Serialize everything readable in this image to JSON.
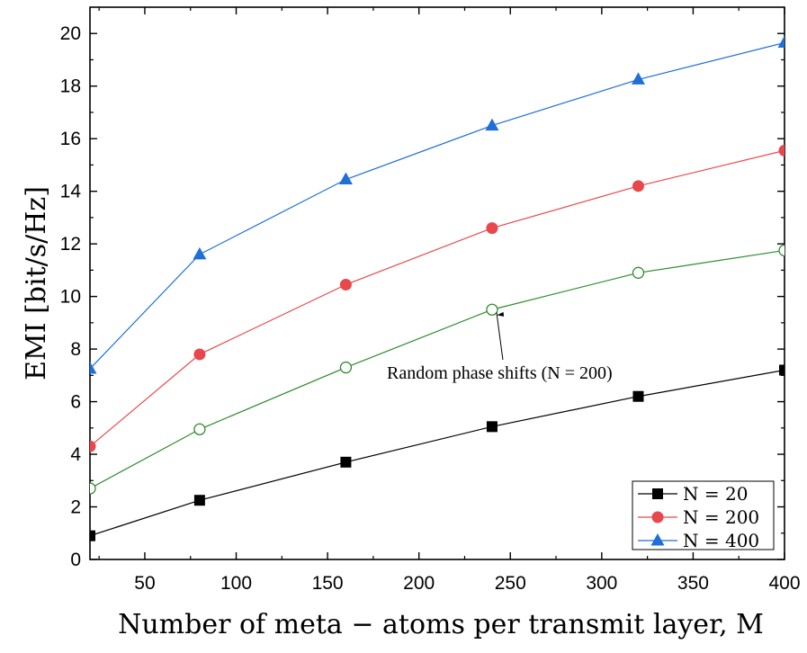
{
  "chart_data": {
    "type": "line",
    "title": "",
    "xlabel": "Number of meta − atoms per transmit layer, M",
    "ylabel": "EMI [bit/s/Hz]",
    "xlim": [
      20,
      400
    ],
    "ylim": [
      0,
      21
    ],
    "xticks": [
      50,
      100,
      150,
      200,
      250,
      300,
      350,
      400
    ],
    "yticks": [
      0,
      2,
      4,
      6,
      8,
      10,
      12,
      14,
      16,
      18,
      20
    ],
    "x": [
      20,
      80,
      160,
      240,
      320,
      400
    ],
    "series": [
      {
        "name": "N = 20",
        "values": [
          0.9,
          2.25,
          3.7,
          5.05,
          6.2,
          7.2
        ],
        "color": "#000000",
        "marker": "square",
        "legend": true
      },
      {
        "name": "N = 200",
        "values": [
          4.3,
          7.8,
          10.45,
          12.6,
          14.2,
          15.55
        ],
        "color": "#e8474c",
        "marker": "circle",
        "legend": true
      },
      {
        "name": "N = 400",
        "values": [
          7.25,
          11.6,
          14.45,
          16.5,
          18.25,
          19.65
        ],
        "color": "#1f6fd6",
        "marker": "triangle",
        "legend": true
      },
      {
        "name": "Random phase shifts (N = 200)",
        "values": [
          2.7,
          4.95,
          7.3,
          9.5,
          10.9,
          11.75
        ],
        "color": "#2e8b2e",
        "marker": "open-circle",
        "legend": false
      }
    ],
    "annotation": {
      "text": "Random phase shifts (N = 200)",
      "points_to": {
        "x": 240,
        "y": 9.5
      }
    },
    "legend_position": "bottom-right",
    "grid": false
  }
}
